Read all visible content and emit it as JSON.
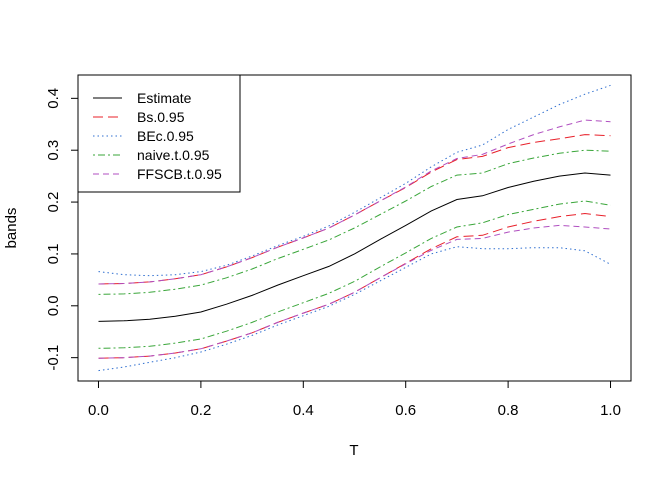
{
  "chart_data": {
    "type": "line",
    "title": "",
    "xlabel": "T",
    "ylabel": "bands",
    "xlim": [
      -0.04,
      1.04
    ],
    "ylim": [
      -0.145,
      0.445
    ],
    "xticks": [
      "0.0",
      "0.2",
      "0.4",
      "0.6",
      "0.8",
      "1.0"
    ],
    "yticks": [
      "-0.1",
      "0.0",
      "0.1",
      "0.2",
      "0.3",
      "0.4"
    ],
    "grid": false,
    "legend_position": "top-left",
    "x": [
      0.0,
      0.05,
      0.1,
      0.15,
      0.2,
      0.25,
      0.3,
      0.35,
      0.4,
      0.45,
      0.5,
      0.55,
      0.6,
      0.65,
      0.7,
      0.75,
      0.8,
      0.85,
      0.9,
      0.95,
      1.0
    ],
    "series": [
      {
        "name": "Estimate",
        "color": "#000000",
        "dash": "solid",
        "values": [
          -0.03,
          -0.029,
          -0.026,
          -0.02,
          -0.012,
          0.003,
          0.02,
          0.04,
          0.058,
          0.076,
          0.1,
          0.128,
          0.155,
          0.183,
          0.205,
          0.212,
          0.228,
          0.24,
          0.25,
          0.256,
          0.252
        ]
      },
      {
        "name": "Bs.0.95",
        "color": "#e8202a",
        "dash": "longdash",
        "values_upper": [
          0.042,
          0.043,
          0.046,
          0.052,
          0.06,
          0.075,
          0.093,
          0.113,
          0.131,
          0.15,
          0.175,
          0.202,
          0.228,
          0.258,
          0.282,
          0.288,
          0.305,
          0.315,
          0.322,
          0.33,
          0.328
        ],
        "values_lower": [
          -0.101,
          -0.1,
          -0.097,
          -0.091,
          -0.083,
          -0.068,
          -0.052,
          -0.032,
          -0.014,
          0.003,
          0.026,
          0.054,
          0.082,
          0.11,
          0.133,
          0.136,
          0.152,
          0.163,
          0.172,
          0.178,
          0.172
        ]
      },
      {
        "name": "BEc.0.95",
        "color": "#2f6fd0",
        "dash": "dotted",
        "values_upper": [
          0.066,
          0.06,
          0.058,
          0.06,
          0.066,
          0.078,
          0.096,
          0.116,
          0.134,
          0.154,
          0.18,
          0.208,
          0.236,
          0.268,
          0.296,
          0.31,
          0.34,
          0.364,
          0.388,
          0.408,
          0.425
        ],
        "values_lower": [
          -0.125,
          -0.118,
          -0.109,
          -0.1,
          -0.089,
          -0.074,
          -0.057,
          -0.037,
          -0.019,
          -0.001,
          0.022,
          0.048,
          0.074,
          0.1,
          0.114,
          0.11,
          0.11,
          0.112,
          0.112,
          0.106,
          0.08
        ]
      },
      {
        "name": "naive.t.0.95",
        "color": "#3aa63a",
        "dash": "dotdash",
        "values_upper": [
          0.022,
          0.023,
          0.026,
          0.032,
          0.04,
          0.054,
          0.071,
          0.091,
          0.109,
          0.127,
          0.15,
          0.176,
          0.202,
          0.23,
          0.252,
          0.256,
          0.274,
          0.285,
          0.294,
          0.3,
          0.298
        ],
        "values_lower": [
          -0.082,
          -0.081,
          -0.078,
          -0.072,
          -0.064,
          -0.049,
          -0.032,
          -0.012,
          0.006,
          0.024,
          0.047,
          0.075,
          0.102,
          0.13,
          0.152,
          0.16,
          0.176,
          0.186,
          0.196,
          0.202,
          0.194
        ]
      },
      {
        "name": "FFSCB.t.0.95",
        "color": "#b04fc0",
        "dash": "dashed",
        "values_upper": [
          0.042,
          0.043,
          0.046,
          0.052,
          0.06,
          0.075,
          0.093,
          0.113,
          0.131,
          0.15,
          0.175,
          0.202,
          0.229,
          0.26,
          0.284,
          0.292,
          0.312,
          0.33,
          0.345,
          0.358,
          0.355
        ],
        "values_lower": [
          -0.101,
          -0.1,
          -0.097,
          -0.091,
          -0.083,
          -0.068,
          -0.052,
          -0.032,
          -0.014,
          0.003,
          0.026,
          0.054,
          0.081,
          0.107,
          0.128,
          0.13,
          0.142,
          0.15,
          0.155,
          0.152,
          0.148
        ]
      }
    ]
  }
}
